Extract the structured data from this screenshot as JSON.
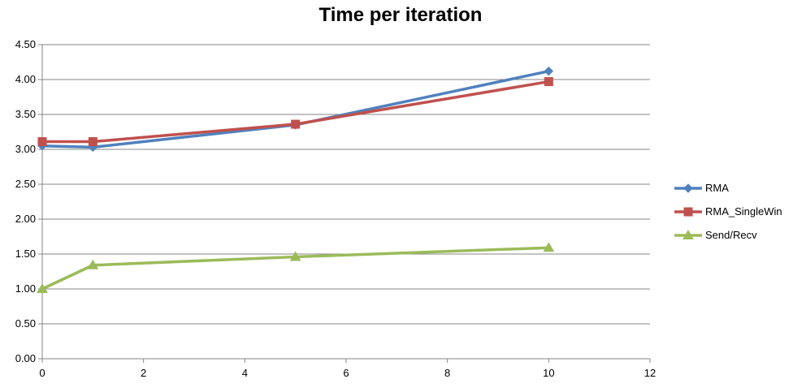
{
  "chart_data": {
    "type": "line",
    "title": "Time per iteration",
    "xlabel": "",
    "ylabel": "",
    "xlim": [
      0,
      12
    ],
    "ylim": [
      0,
      4.5
    ],
    "x_ticks": [
      0,
      2,
      4,
      6,
      8,
      10,
      12
    ],
    "y_ticks": [
      0,
      0.5,
      1,
      1.5,
      2,
      2.5,
      3,
      3.5,
      4,
      4.5
    ],
    "x_tick_labels": [
      "0",
      "2",
      "4",
      "6",
      "8",
      "10",
      "12"
    ],
    "y_tick_labels": [
      "0.00",
      "0.50",
      "1.00",
      "1.50",
      "2.00",
      "2.50",
      "3.00",
      "3.50",
      "4.00",
      "4.50"
    ],
    "grid": "horizontal",
    "legend_position": "right",
    "x": [
      0,
      1,
      5,
      10
    ],
    "series": [
      {
        "name": "RMA",
        "values": [
          3.05,
          3.03,
          3.35,
          4.12
        ],
        "color": "#4F81BD",
        "marker": "diamond"
      },
      {
        "name": "RMA_SingleWin",
        "values": [
          3.11,
          3.11,
          3.36,
          3.97
        ],
        "color": "#C0504D",
        "marker": "square"
      },
      {
        "name": "Send/Recv",
        "values": [
          1.0,
          1.34,
          1.46,
          1.59
        ],
        "color": "#9BBB59",
        "marker": "triangle"
      }
    ]
  }
}
